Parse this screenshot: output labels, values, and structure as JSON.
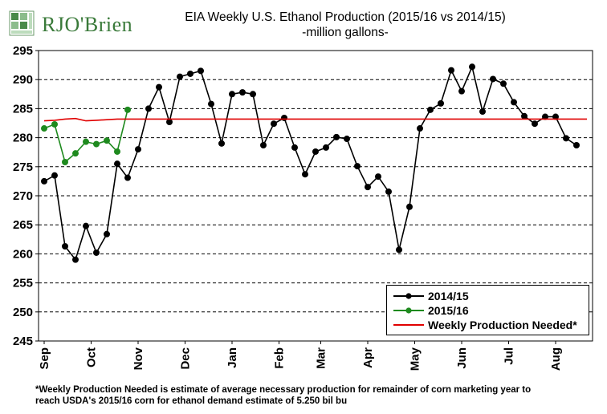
{
  "logo": {
    "brand": "RJO'Brien",
    "display_text": "RJO'Brien"
  },
  "title": {
    "line1": "EIA Weekly U.S. Ethanol Production (2015/16 vs 2014/15)",
    "line2": "-million  gallons-"
  },
  "footnote": {
    "line1": "*Weekly Production Needed is estimate of average necessary production for remainder of corn marketing year to",
    "line2": "reach USDA's 2015/16 corn for ethanol demand estimate of 5.250 bil bu"
  },
  "chart_data": {
    "type": "line",
    "title": "EIA Weekly U.S. Ethanol Production (2015/16 vs 2014/15)",
    "subtitle": "-million  gallons-",
    "xlabel": "",
    "ylabel": "",
    "ylim": [
      245,
      295
    ],
    "yticks": [
      245,
      250,
      255,
      260,
      265,
      270,
      275,
      280,
      285,
      290,
      295
    ],
    "x_weeks": 53,
    "x_month_labels": [
      {
        "label": "Sep",
        "week": 0
      },
      {
        "label": "Oct",
        "week": 4.5
      },
      {
        "label": "Nov",
        "week": 9
      },
      {
        "label": "Dec",
        "week": 13.5
      },
      {
        "label": "Jan",
        "week": 18
      },
      {
        "label": "Feb",
        "week": 22.5
      },
      {
        "label": "Mar",
        "week": 26.5
      },
      {
        "label": "Apr",
        "week": 31
      },
      {
        "label": "May",
        "week": 35.5
      },
      {
        "label": "Jun",
        "week": 40
      },
      {
        "label": "Jul",
        "week": 44.5
      },
      {
        "label": "Aug",
        "week": 49
      }
    ],
    "grid": true,
    "legend_position": "bottom-right",
    "series": [
      {
        "name": "2014/15",
        "color": "#000000",
        "marker": "circle",
        "values": [
          272.5,
          273.5,
          261.3,
          259.0,
          264.8,
          260.2,
          263.4,
          275.5,
          273.1,
          278.0,
          285.0,
          288.7,
          282.7,
          290.5,
          291.0,
          291.5,
          285.8,
          279.0,
          287.5,
          287.8,
          287.5,
          278.7,
          282.4,
          283.4,
          278.3,
          273.7,
          277.6,
          278.3,
          280.1,
          279.8,
          275.1,
          271.5,
          273.3,
          270.7,
          260.7,
          268.1,
          281.6,
          284.8,
          285.9,
          291.6,
          288.0,
          292.2,
          284.5,
          290.1,
          289.3,
          286.1,
          283.7,
          282.4,
          283.6,
          283.6,
          279.9,
          278.7
        ]
      },
      {
        "name": "2015/16",
        "color": "#1e8a1e",
        "marker": "circle",
        "values": [
          281.6,
          282.3,
          275.8,
          277.3,
          279.3,
          278.9,
          279.5,
          277.6,
          284.8
        ]
      },
      {
        "name": "Weekly Production Needed*",
        "color": "#e00000",
        "marker": "none",
        "values": [
          282.9,
          283.0,
          283.2,
          283.3,
          282.9,
          283.0,
          283.1,
          283.2,
          283.2,
          283.2,
          283.2,
          283.2,
          283.2,
          283.2,
          283.2,
          283.2,
          283.2,
          283.2,
          283.2,
          283.2,
          283.2,
          283.2,
          283.2,
          283.2,
          283.2,
          283.2,
          283.2,
          283.2,
          283.2,
          283.2,
          283.2,
          283.2,
          283.2,
          283.2,
          283.2,
          283.2,
          283.2,
          283.2,
          283.2,
          283.2,
          283.2,
          283.2,
          283.2,
          283.2,
          283.2,
          283.2,
          283.2,
          283.2,
          283.2,
          283.2,
          283.2,
          283.2,
          283.2
        ]
      }
    ]
  }
}
